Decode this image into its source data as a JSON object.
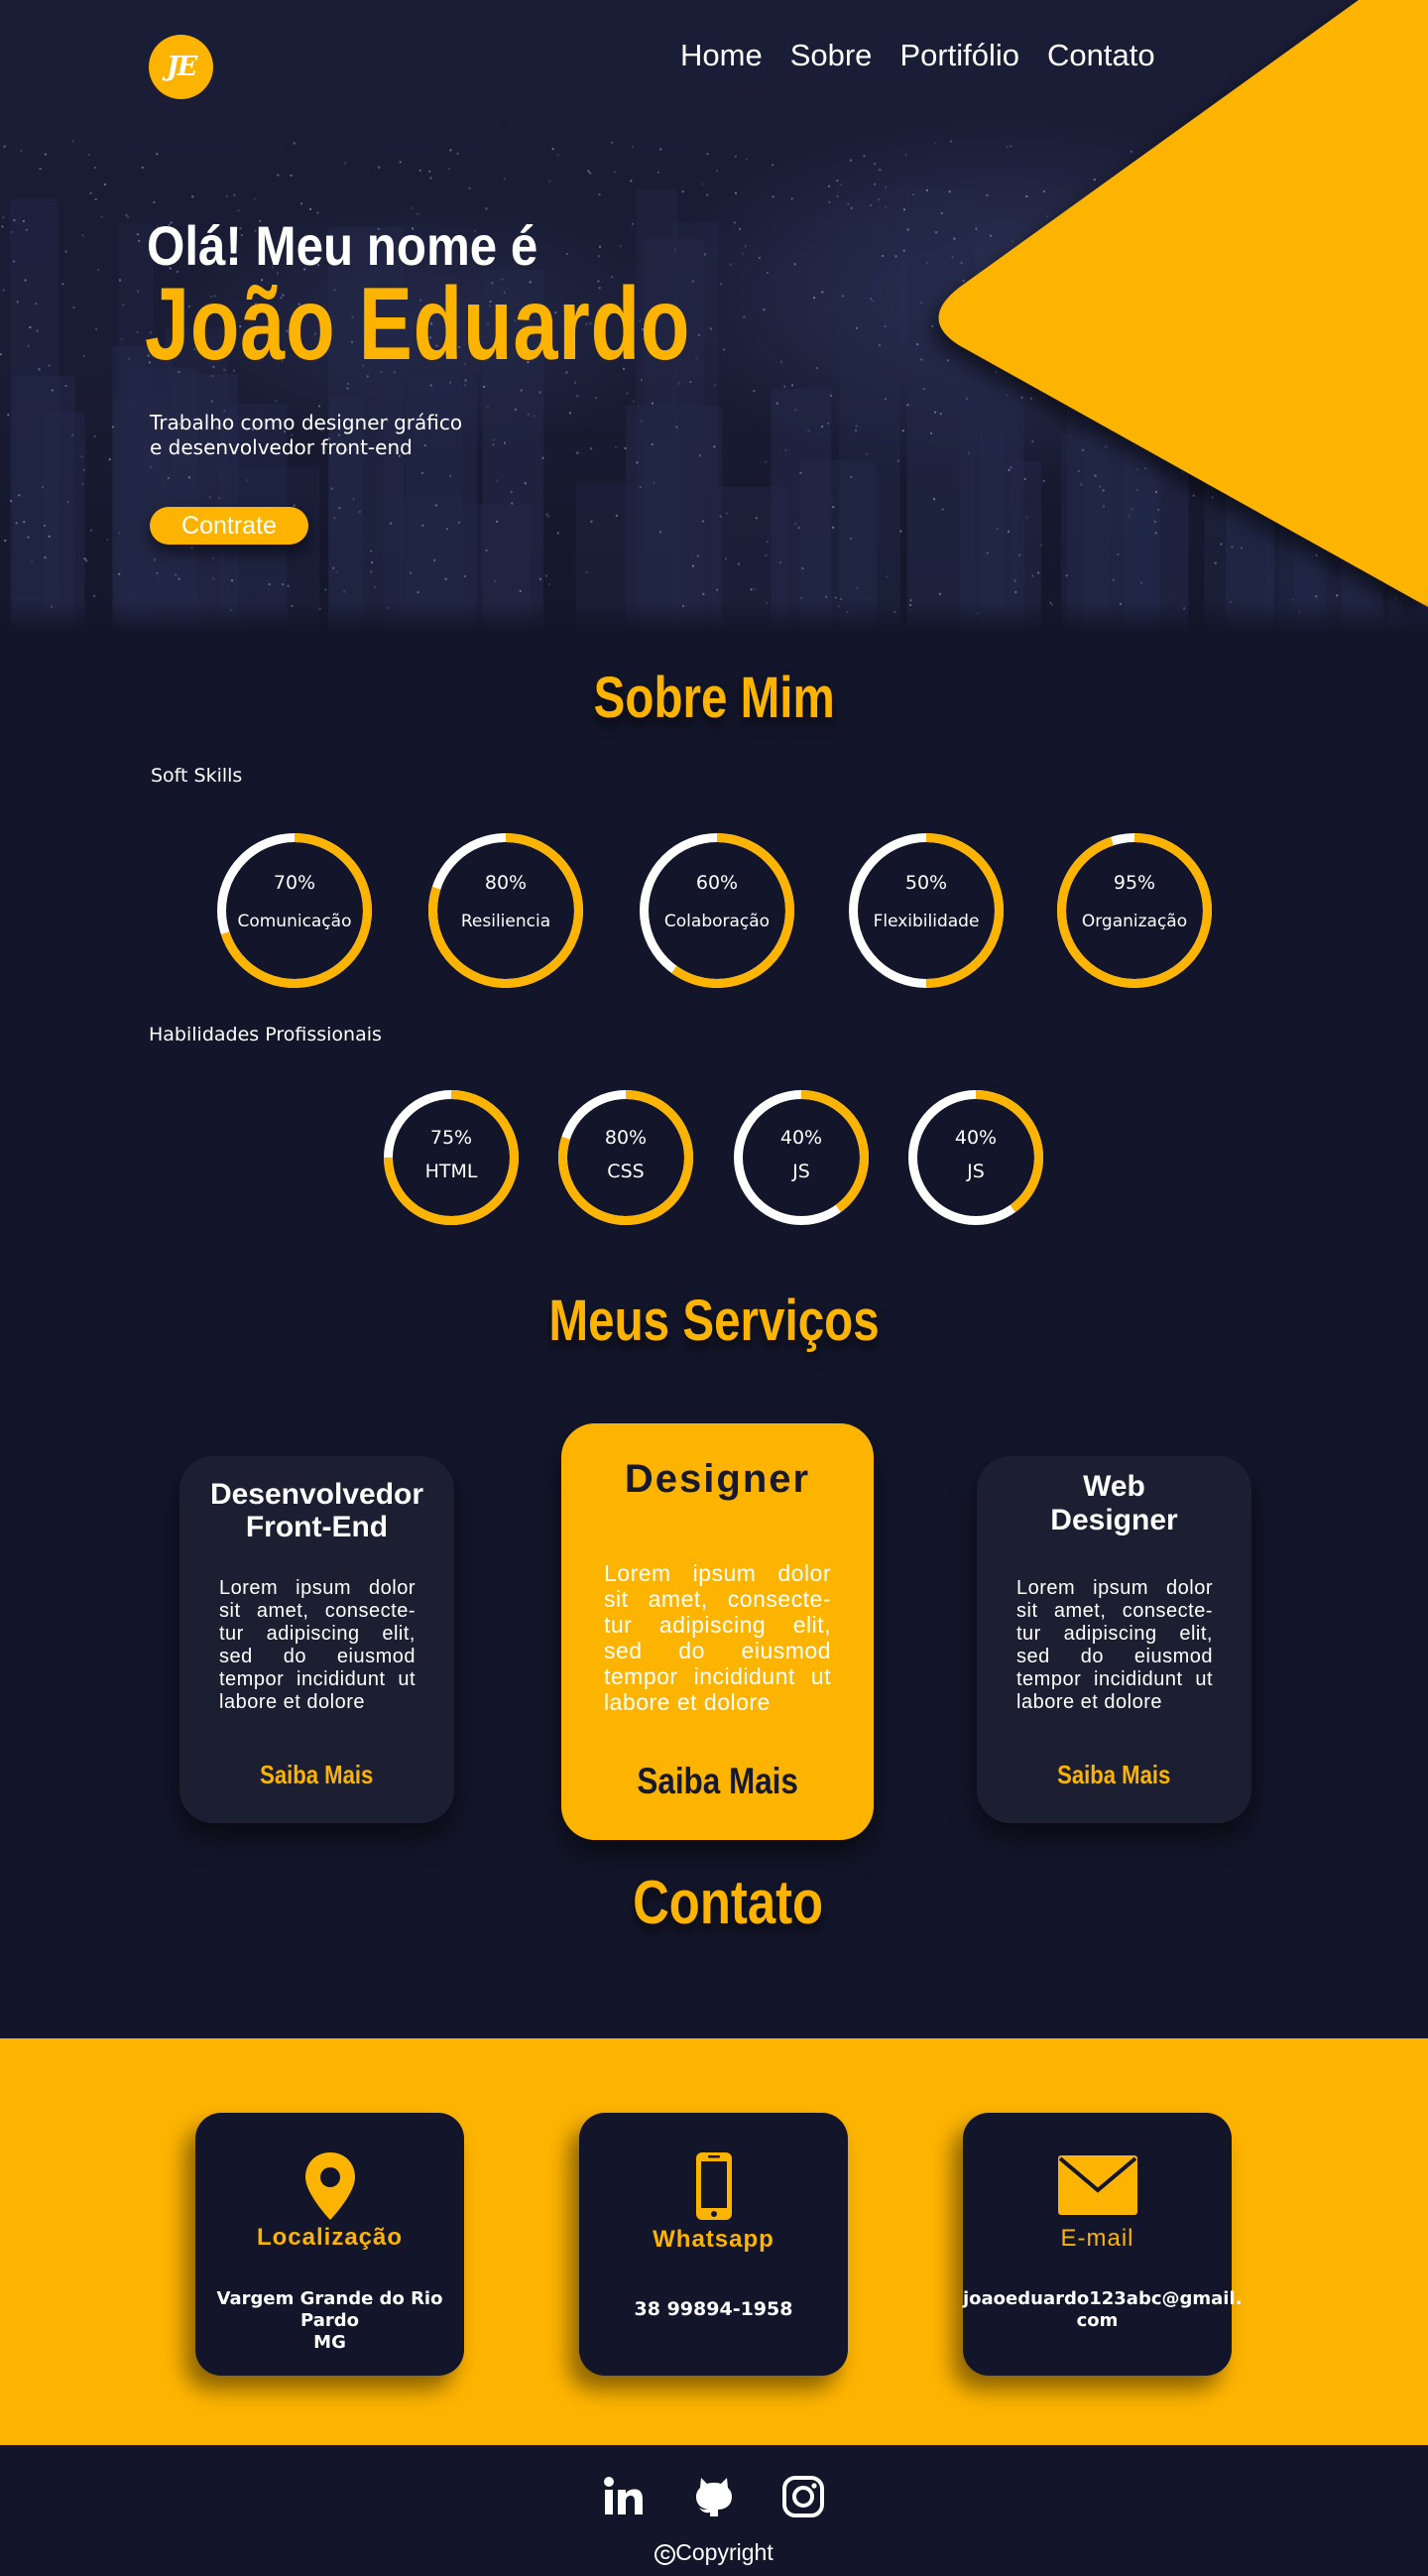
{
  "header": {
    "logo_text": "JE",
    "nav": [
      "Home",
      "Sobre",
      "Portifólio",
      "Contato"
    ]
  },
  "hero": {
    "greeting": "Olá! Meu nome é",
    "name": "João Eduardo",
    "intro_lines": [
      "Trabalho como designer gráfico",
      "e desenvolvedor front-end"
    ],
    "cta": "Contrate"
  },
  "about": {
    "title": "Sobre Mim",
    "soft_label": "Soft Skills",
    "soft_skills": [
      {
        "percent": "70%",
        "label": "Comunicação",
        "value": 70
      },
      {
        "percent": "80%",
        "label": "Resiliencia",
        "value": 80
      },
      {
        "percent": "60%",
        "label": "Colaboração",
        "value": 60
      },
      {
        "percent": "50%",
        "label": "Flexibilidade",
        "value": 50
      },
      {
        "percent": "95%",
        "label": "Organização",
        "value": 95
      }
    ],
    "pro_label": "Habilidades Profissionais",
    "pro_skills": [
      {
        "percent": "75%",
        "label": "HTML",
        "value": 75
      },
      {
        "percent": "80%",
        "label": "CSS",
        "value": 80
      },
      {
        "percent": "40%",
        "label": "JS",
        "value": 40
      },
      {
        "percent": "40%",
        "label": "JS",
        "value": 40
      }
    ]
  },
  "services": {
    "title": "Meus Serviços",
    "lorem": "Lorem ipsum dolor sit amet, consecte- tur adipiscing elit, sed do eiusmod tempor incididunt ut labore et dolore",
    "cards": [
      {
        "title_lines": [
          "Desenvolvedor",
          "Front-End"
        ],
        "link": "Saiba Mais"
      },
      {
        "title_lines": [
          "Designer"
        ],
        "link": "Saiba Mais"
      },
      {
        "title_lines": [
          "Web",
          "Designer"
        ],
        "link": "Saiba Mais"
      }
    ]
  },
  "contact": {
    "title": "Contato",
    "items": [
      {
        "icon": "location-pin-icon",
        "heading": "Localização",
        "info_lines": [
          "Vargem Grande do Rio Pardo",
          "MG"
        ]
      },
      {
        "icon": "smartphone-icon",
        "heading": "Whatsapp",
        "info_lines": [
          "38 99894-1958"
        ]
      },
      {
        "icon": "envelope-icon",
        "heading": "E-mail",
        "info_lines": [
          "joaoeduardo123abc@gmail.",
          "com"
        ]
      }
    ]
  },
  "footer": {
    "social": [
      "linkedin-icon",
      "github-icon",
      "instagram-icon"
    ],
    "copyright_mark": "C",
    "copyright": "Copyright"
  },
  "colors": {
    "accent": "#fdb400",
    "background": "#13162a",
    "card": "#1c1f31",
    "ring_track": "#ffffff"
  }
}
